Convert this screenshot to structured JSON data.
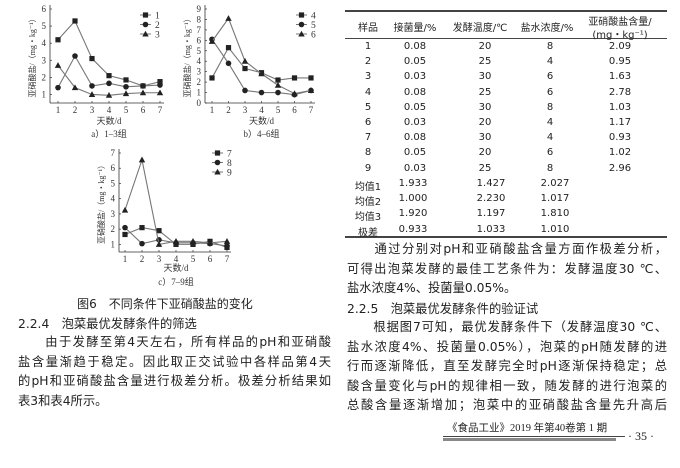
{
  "figure": {
    "caption": "图6　不同条件下亚硝酸盐的变化",
    "colors": {
      "line": "#777777",
      "marker": "#222222"
    }
  },
  "chart_data": [
    {
      "type": "line",
      "subcaption": "a）1–3组",
      "xlabel": "天数/d",
      "ylabel": "亚硝酸盐/（mg・kg⁻¹）",
      "x": [
        1,
        2,
        3,
        4,
        5,
        6,
        7
      ],
      "ylim": [
        0.5,
        6
      ],
      "yticks": [
        1,
        2,
        3,
        4,
        5,
        6
      ],
      "legend": "top-right",
      "series": [
        {
          "name": "1",
          "marker": "square",
          "values": [
            4.2,
            5.3,
            3.1,
            2.1,
            1.85,
            1.5,
            1.75
          ]
        },
        {
          "name": "2",
          "marker": "circle",
          "values": [
            1.4,
            3.25,
            1.5,
            1.65,
            1.45,
            1.5,
            1.55
          ]
        },
        {
          "name": "3",
          "marker": "triangle",
          "values": [
            2.7,
            1.4,
            1.0,
            0.95,
            1.05,
            1.1,
            1.1
          ]
        }
      ]
    },
    {
      "type": "line",
      "subcaption": "b）4–6组",
      "xlabel": "天数/d",
      "ylabel": "亚硝酸盐/（mg・kg⁻¹）",
      "x": [
        1,
        2,
        3,
        4,
        5,
        6,
        7
      ],
      "ylim": [
        0,
        9
      ],
      "yticks": [
        0,
        1,
        2,
        3,
        4,
        5,
        6,
        7,
        8,
        9
      ],
      "legend": "top-right",
      "series": [
        {
          "name": "4",
          "marker": "square",
          "values": [
            2.4,
            5.3,
            3.3,
            2.9,
            2.2,
            2.4,
            2.4
          ]
        },
        {
          "name": "5",
          "marker": "circle",
          "values": [
            6.1,
            3.8,
            1.2,
            1.0,
            1.0,
            0.8,
            1.2
          ]
        },
        {
          "name": "6",
          "marker": "triangle",
          "values": [
            5.9,
            8.1,
            4.0,
            2.8,
            1.7,
            0.9,
            1.2
          ]
        }
      ]
    },
    {
      "type": "line",
      "subcaption": "c）7–9组",
      "xlabel": "天数/d",
      "ylabel": "亚硝酸盐/（mg・kg⁻¹）",
      "x": [
        1,
        2,
        3,
        4,
        5,
        6,
        7
      ],
      "ylim": [
        0.5,
        7
      ],
      "yticks": [
        1,
        2,
        3,
        4,
        5,
        6,
        7
      ],
      "legend": "top-right",
      "series": [
        {
          "name": "7",
          "marker": "square",
          "values": [
            1.65,
            2.1,
            1.9,
            1.0,
            1.0,
            1.2,
            0.8
          ]
        },
        {
          "name": "8",
          "marker": "circle",
          "values": [
            2.1,
            1.05,
            1.3,
            1.1,
            1.1,
            1.05,
            0.9
          ]
        },
        {
          "name": "9",
          "marker": "triangle",
          "values": [
            3.25,
            6.55,
            1.0,
            1.2,
            1.2,
            1.1,
            1.2
          ]
        }
      ]
    }
  ],
  "table": {
    "headers": [
      "样品",
      "接菌量/%",
      "发酵温度/℃",
      "盐水浓度/%",
      "亚硝酸盐含量/",
      "(mg・kg⁻¹)"
    ],
    "rows": [
      [
        "1",
        "0.08",
        "20",
        "8",
        "2.09"
      ],
      [
        "2",
        "0.05",
        "25",
        "4",
        "0.95"
      ],
      [
        "3",
        "0.03",
        "30",
        "6",
        "1.63"
      ],
      [
        "4",
        "0.08",
        "25",
        "6",
        "2.78"
      ],
      [
        "5",
        "0.05",
        "30",
        "8",
        "1.03"
      ],
      [
        "6",
        "0.03",
        "20",
        "4",
        "1.17"
      ],
      [
        "7",
        "0.08",
        "30",
        "4",
        "0.93"
      ],
      [
        "8",
        "0.05",
        "20",
        "6",
        "1.02"
      ],
      [
        "9",
        "0.03",
        "25",
        "8",
        "2.96"
      ]
    ],
    "summary": [
      [
        "均值1",
        "1.933",
        "1.427",
        "2.027"
      ],
      [
        "均值2",
        "1.000",
        "2.230",
        "1.017"
      ],
      [
        "均值3",
        "1.920",
        "1.197",
        "1.810"
      ],
      [
        "极差",
        "0.933",
        "1.033",
        "1.010"
      ]
    ]
  },
  "left_text": {
    "heading": "2.2.4　泡菜最优发酵条件的筛选",
    "lines": [
      "　　由于发酵至第4天左右，所有样品的pH和亚硝酸",
      "盐含量渐趋于稳定。因此取正交试验中各样品第4天",
      "的pH和亚硝酸盐含量进行极差分析。极差分析结果如",
      "表3和表4所示。"
    ]
  },
  "right_text": {
    "para1": [
      "　　通过分别对pH和亚硝酸盐含量方面作极差分析，",
      "可得出泡菜发酵的最佳工艺条件为：发酵温度30 ℃、",
      "盐水浓度4%、投菌量0.05%。"
    ],
    "heading": "2.2.5　泡菜最优发酵条件的验证试",
    "para2": [
      "　　根据图7可知，最优发酵条件下（发酵温度30 ℃、",
      "盐水浓度4%、投菌量0.05%），泡菜的pH随发酵的进",
      "行而逐渐降低，直至发酵完全时pH逐渐保持稳定；总",
      "酸含量变化与pH的规律相一致，随发酵的进行泡菜的",
      "总酸含量逐渐增加；泡菜中的亚硝酸盐含量先升高后"
    ]
  },
  "footer": {
    "journal": "《食品工业》2019 年第40卷第 1 期",
    "page": "· 35 ·"
  }
}
